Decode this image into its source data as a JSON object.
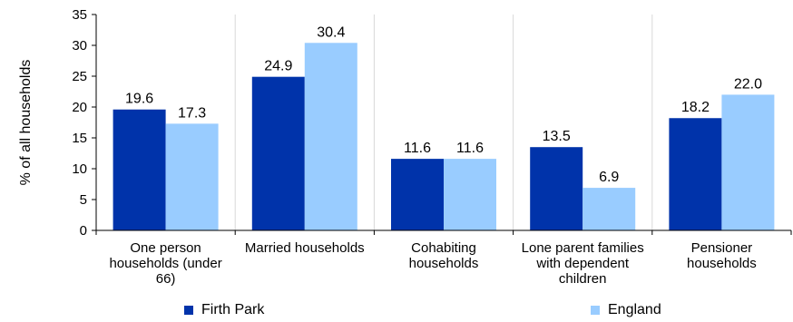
{
  "chart_data": {
    "type": "bar",
    "ylabel": "% of all households",
    "ylim": [
      0,
      35
    ],
    "yticks": [
      0,
      5,
      10,
      15,
      20,
      25,
      30,
      35
    ],
    "grid": "vertical category separators",
    "legend_position": "bottom",
    "categories": [
      "One person\nhouseholds (under\n66)",
      "Married households",
      "Cohabiting\nhouseholds",
      "Lone parent families\nwith dependent\nchildren",
      "Pensioner\nhouseholds"
    ],
    "series": [
      {
        "name": "Firth Park",
        "color": "#0033aa",
        "values": [
          19.6,
          24.9,
          11.6,
          13.5,
          18.2
        ],
        "labels": [
          "19.6",
          "24.9",
          "11.6",
          "13.5",
          "18.2"
        ]
      },
      {
        "name": "England",
        "color": "#99ccff",
        "values": [
          17.3,
          30.4,
          11.6,
          6.9,
          22.0
        ],
        "labels": [
          "17.3",
          "30.4",
          "11.6",
          "6.9",
          "22.0"
        ]
      }
    ]
  }
}
